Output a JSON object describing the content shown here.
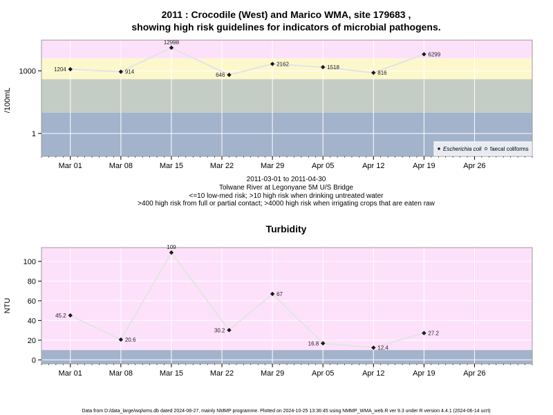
{
  "chart_data": [
    {
      "type": "line",
      "title_line1": "2011 : Crocodile (West) and Marico WMA, site 179683 ,",
      "title_line2": "showing high risk guidelines for indicators of microbial pathogens.",
      "ylabel": "/100mL",
      "y_scale": "log10",
      "ylim": [
        0.08,
        30000
      ],
      "yticks": [
        {
          "value": 1,
          "label": "1"
        },
        {
          "value": 1000,
          "label": "1000"
        }
      ],
      "xlim": [
        "2011-02-25",
        "2011-05-04"
      ],
      "xticks": [
        {
          "date": "2011-03-01",
          "label": "Mar 01"
        },
        {
          "date": "2011-03-08",
          "label": "Mar 08"
        },
        {
          "date": "2011-03-15",
          "label": "Mar 15"
        },
        {
          "date": "2011-03-22",
          "label": "Mar 22"
        },
        {
          "date": "2011-03-29",
          "label": "Mar 29"
        },
        {
          "date": "2011-04-05",
          "label": "Apr 05"
        },
        {
          "date": "2011-04-12",
          "label": "Apr 12"
        },
        {
          "date": "2011-04-19",
          "label": "Apr 19"
        },
        {
          "date": "2011-04-26",
          "label": "Apr 26"
        }
      ],
      "bands": [
        {
          "from": 0.08,
          "to": 10,
          "color": "#a3b3cc"
        },
        {
          "from": 10,
          "to": 400,
          "color": "#c4ccc6"
        },
        {
          "from": 400,
          "to": 4000,
          "color": "#fdf8cc"
        },
        {
          "from": 4000,
          "to": 30000,
          "color": "#fde1fb"
        }
      ],
      "grid": true,
      "legend_position": "bottom-right",
      "legend": [
        {
          "marker": "filled-diamond",
          "label": "Escherichia coli",
          "italic": true
        },
        {
          "marker": "open-circle",
          "label": "faecal coliforms",
          "italic": false
        }
      ],
      "series": [
        {
          "name": "Escherichia coli",
          "x": [
            "2011-03-01",
            "2011-03-08",
            "2011-03-15",
            "2011-03-23",
            "2011-03-29",
            "2011-04-05",
            "2011-04-12",
            "2011-04-19"
          ],
          "y": [
            1204,
            914,
            12998,
            646,
            2162,
            1518,
            816,
            6299
          ],
          "labels": [
            "1204",
            "914",
            "12998",
            "646",
            "2162",
            "1518",
            "816",
            "6299"
          ],
          "label_side": [
            "left",
            "right",
            "above",
            "left",
            "right",
            "right",
            "right",
            "right"
          ]
        }
      ]
    },
    {
      "type": "line",
      "title": "Turbidity",
      "ylabel": "NTU",
      "ylim": [
        -4,
        114
      ],
      "yticks": [
        0,
        20,
        40,
        60,
        80,
        100
      ],
      "xlim": [
        "2011-02-25",
        "2011-05-04"
      ],
      "xticks": [
        {
          "date": "2011-03-01",
          "label": "Mar 01"
        },
        {
          "date": "2011-03-08",
          "label": "Mar 08"
        },
        {
          "date": "2011-03-15",
          "label": "Mar 15"
        },
        {
          "date": "2011-03-22",
          "label": "Mar 22"
        },
        {
          "date": "2011-03-29",
          "label": "Mar 29"
        },
        {
          "date": "2011-04-05",
          "label": "Apr 05"
        },
        {
          "date": "2011-04-12",
          "label": "Apr 12"
        },
        {
          "date": "2011-04-19",
          "label": "Apr 19"
        },
        {
          "date": "2011-04-26",
          "label": "Apr 26"
        }
      ],
      "bands": [
        {
          "from": -4,
          "to": 10,
          "color": "#a3b3cc"
        },
        {
          "from": 10,
          "to": 114,
          "color": "#fde1fb"
        }
      ],
      "grid": true,
      "series": [
        {
          "x": [
            "2011-03-01",
            "2011-03-08",
            "2011-03-15",
            "2011-03-23",
            "2011-03-29",
            "2011-04-05",
            "2011-04-12",
            "2011-04-19"
          ],
          "y": [
            45.2,
            20.6,
            109,
            30.2,
            67,
            16.8,
            12.4,
            27.2
          ],
          "labels": [
            "45.2",
            "20.6",
            "109",
            "30.2",
            "67",
            "16.8",
            "12.4",
            "27.2"
          ],
          "label_side": [
            "left",
            "right",
            "above",
            "left",
            "right",
            "left",
            "right",
            "right"
          ]
        }
      ]
    }
  ],
  "subtitle_lines": [
    "2011-03-01 to 2011-04-30",
    "Tolwane River at Legonyane 5M U/S Bridge",
    "<=10 low-med risk; >10 high risk when drinking untreated water",
    ">400 high risk from full or partial contact; >4000 high risk when irrigating crops that are eaten raw"
  ],
  "footer": "Data from D:/data_large/wq/wms.db dated 2024-08-27, mainly NMMP programme. Plotted on 2024-10-25 13:36:45 using NMMP_WMA_web.R ver 9.3 under R version 4.4.1 (2024-06-14 ucrt)",
  "colors": {
    "line": "#e4e4e4",
    "marker": "#1a1a1a",
    "frame": "#999999",
    "grid": "#ffffff"
  }
}
